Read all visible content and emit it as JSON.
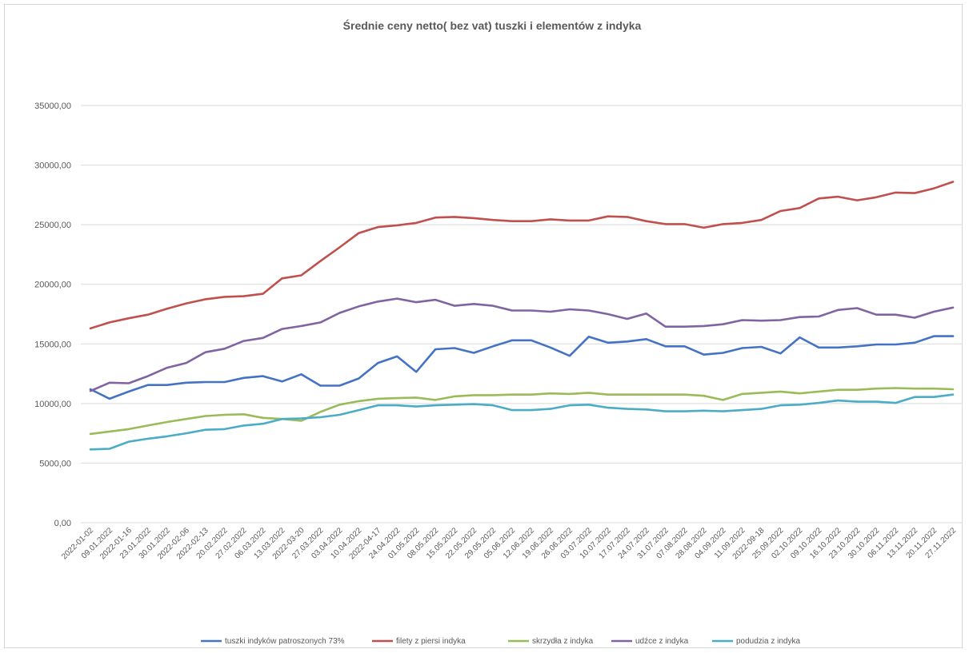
{
  "chart_data": {
    "type": "line",
    "title": "Średnie ceny netto( bez vat) tuszki i elementów z indyka",
    "xlabel": "",
    "ylabel": "",
    "ylim": [
      0,
      35000
    ],
    "y_ticks": [
      "0,00",
      "5000,00",
      "10000,00",
      "15000,00",
      "20000,00",
      "25000,00",
      "30000,00",
      "35000,00"
    ],
    "grid": "horizontal",
    "legend_position": "bottom",
    "x": [
      "2022-01-02",
      "09.01.2022",
      "2022-01-16",
      "23.01.2022",
      "30.01.2022",
      "2022-02-06",
      "2022-02-13",
      "20.02.2022",
      "27.02.2022",
      "06.03.2022",
      "13.03.2022",
      "2022-03-20",
      "27.03.2022",
      "03.04.2022",
      "10.04.2022",
      "2022-04-17",
      "24.04.2022",
      "01.05.2022",
      "08.05.2022",
      "15.05.2022",
      "22.05.2022",
      "29.05.2022",
      "05.06.2022",
      "12.06.2022",
      "19.06.2022",
      "26.06.2022",
      "03.07.2022",
      "10.07.2022",
      "17.07.2022",
      "24.07.2022",
      "31.07.2022",
      "07.08.2022",
      "28.08.2022",
      "04.09.2022",
      "11.09.2022",
      "2022-09-18",
      "25.09.2022",
      "02.10.2022",
      "09.10.2022",
      "16.10.2022",
      "23.10.2022",
      "30.10.2022",
      "06.11.2022",
      "13.11.2022",
      "20.11.2022",
      "27.11.2022"
    ],
    "series": [
      {
        "name": "tuszki indyków patroszonych 73%",
        "color": "#4472c4",
        "values": [
          11200,
          10400,
          11000,
          11550,
          11550,
          11750,
          11800,
          11800,
          12150,
          12300,
          11850,
          12450,
          11500,
          11500,
          12100,
          13400,
          13950,
          12650,
          14550,
          14650,
          14250,
          14800,
          15300,
          15300,
          14700,
          14000,
          15600,
          15100,
          15200,
          15400,
          14800,
          14800,
          14100,
          14250,
          14650,
          14750,
          14200,
          15550,
          14700,
          14700,
          14800,
          14950,
          14950,
          15100,
          15650,
          15650
        ]
      },
      {
        "name": "filety z piersi indyka",
        "color": "#c0504d",
        "values": [
          16300,
          16800,
          17150,
          17450,
          17950,
          18400,
          18750,
          18950,
          19000,
          19200,
          20500,
          20750,
          21950,
          23100,
          24300,
          24800,
          24950,
          25150,
          25600,
          25650,
          25550,
          25400,
          25300,
          25300,
          25450,
          25350,
          25350,
          25700,
          25650,
          25300,
          25050,
          25050,
          24750,
          25050,
          25150,
          25400,
          26150,
          26400,
          27200,
          27350,
          27050,
          27300,
          27700,
          27650,
          28050,
          28600
        ]
      },
      {
        "name": "skrzydła z indyka",
        "color": "#9bbb59",
        "values": [
          7450,
          7650,
          7850,
          8150,
          8450,
          8700,
          8950,
          9050,
          9100,
          8800,
          8700,
          8550,
          9300,
          9900,
          10200,
          10400,
          10450,
          10500,
          10300,
          10600,
          10700,
          10700,
          10750,
          10750,
          10850,
          10800,
          10900,
          10750,
          10750,
          10750,
          10750,
          10750,
          10650,
          10300,
          10800,
          10900,
          11000,
          10850,
          11000,
          11150,
          11150,
          11250,
          11300,
          11250,
          11250,
          11200
        ]
      },
      {
        "name": "udźce z indyka",
        "color": "#8064a2",
        "values": [
          11050,
          11750,
          11700,
          12300,
          13000,
          13400,
          14300,
          14600,
          15250,
          15500,
          16250,
          16500,
          16800,
          17600,
          18150,
          18550,
          18800,
          18500,
          18700,
          18200,
          18350,
          18200,
          17800,
          17800,
          17700,
          17900,
          17800,
          17500,
          17100,
          17550,
          16450,
          16450,
          16500,
          16650,
          17000,
          16950,
          17000,
          17250,
          17300,
          17850,
          18000,
          17450,
          17450,
          17200,
          17700,
          18050
        ]
      },
      {
        "name": "podudzia z indyka",
        "color": "#4bacc6",
        "values": [
          6150,
          6200,
          6800,
          7050,
          7250,
          7500,
          7800,
          7850,
          8150,
          8300,
          8700,
          8750,
          8850,
          9050,
          9450,
          9850,
          9850,
          9750,
          9850,
          9900,
          9950,
          9850,
          9450,
          9450,
          9550,
          9850,
          9900,
          9650,
          9550,
          9500,
          9350,
          9350,
          9400,
          9350,
          9450,
          9550,
          9850,
          9900,
          10050,
          10250,
          10150,
          10150,
          10050,
          10550,
          10550,
          10750
        ]
      }
    ]
  }
}
